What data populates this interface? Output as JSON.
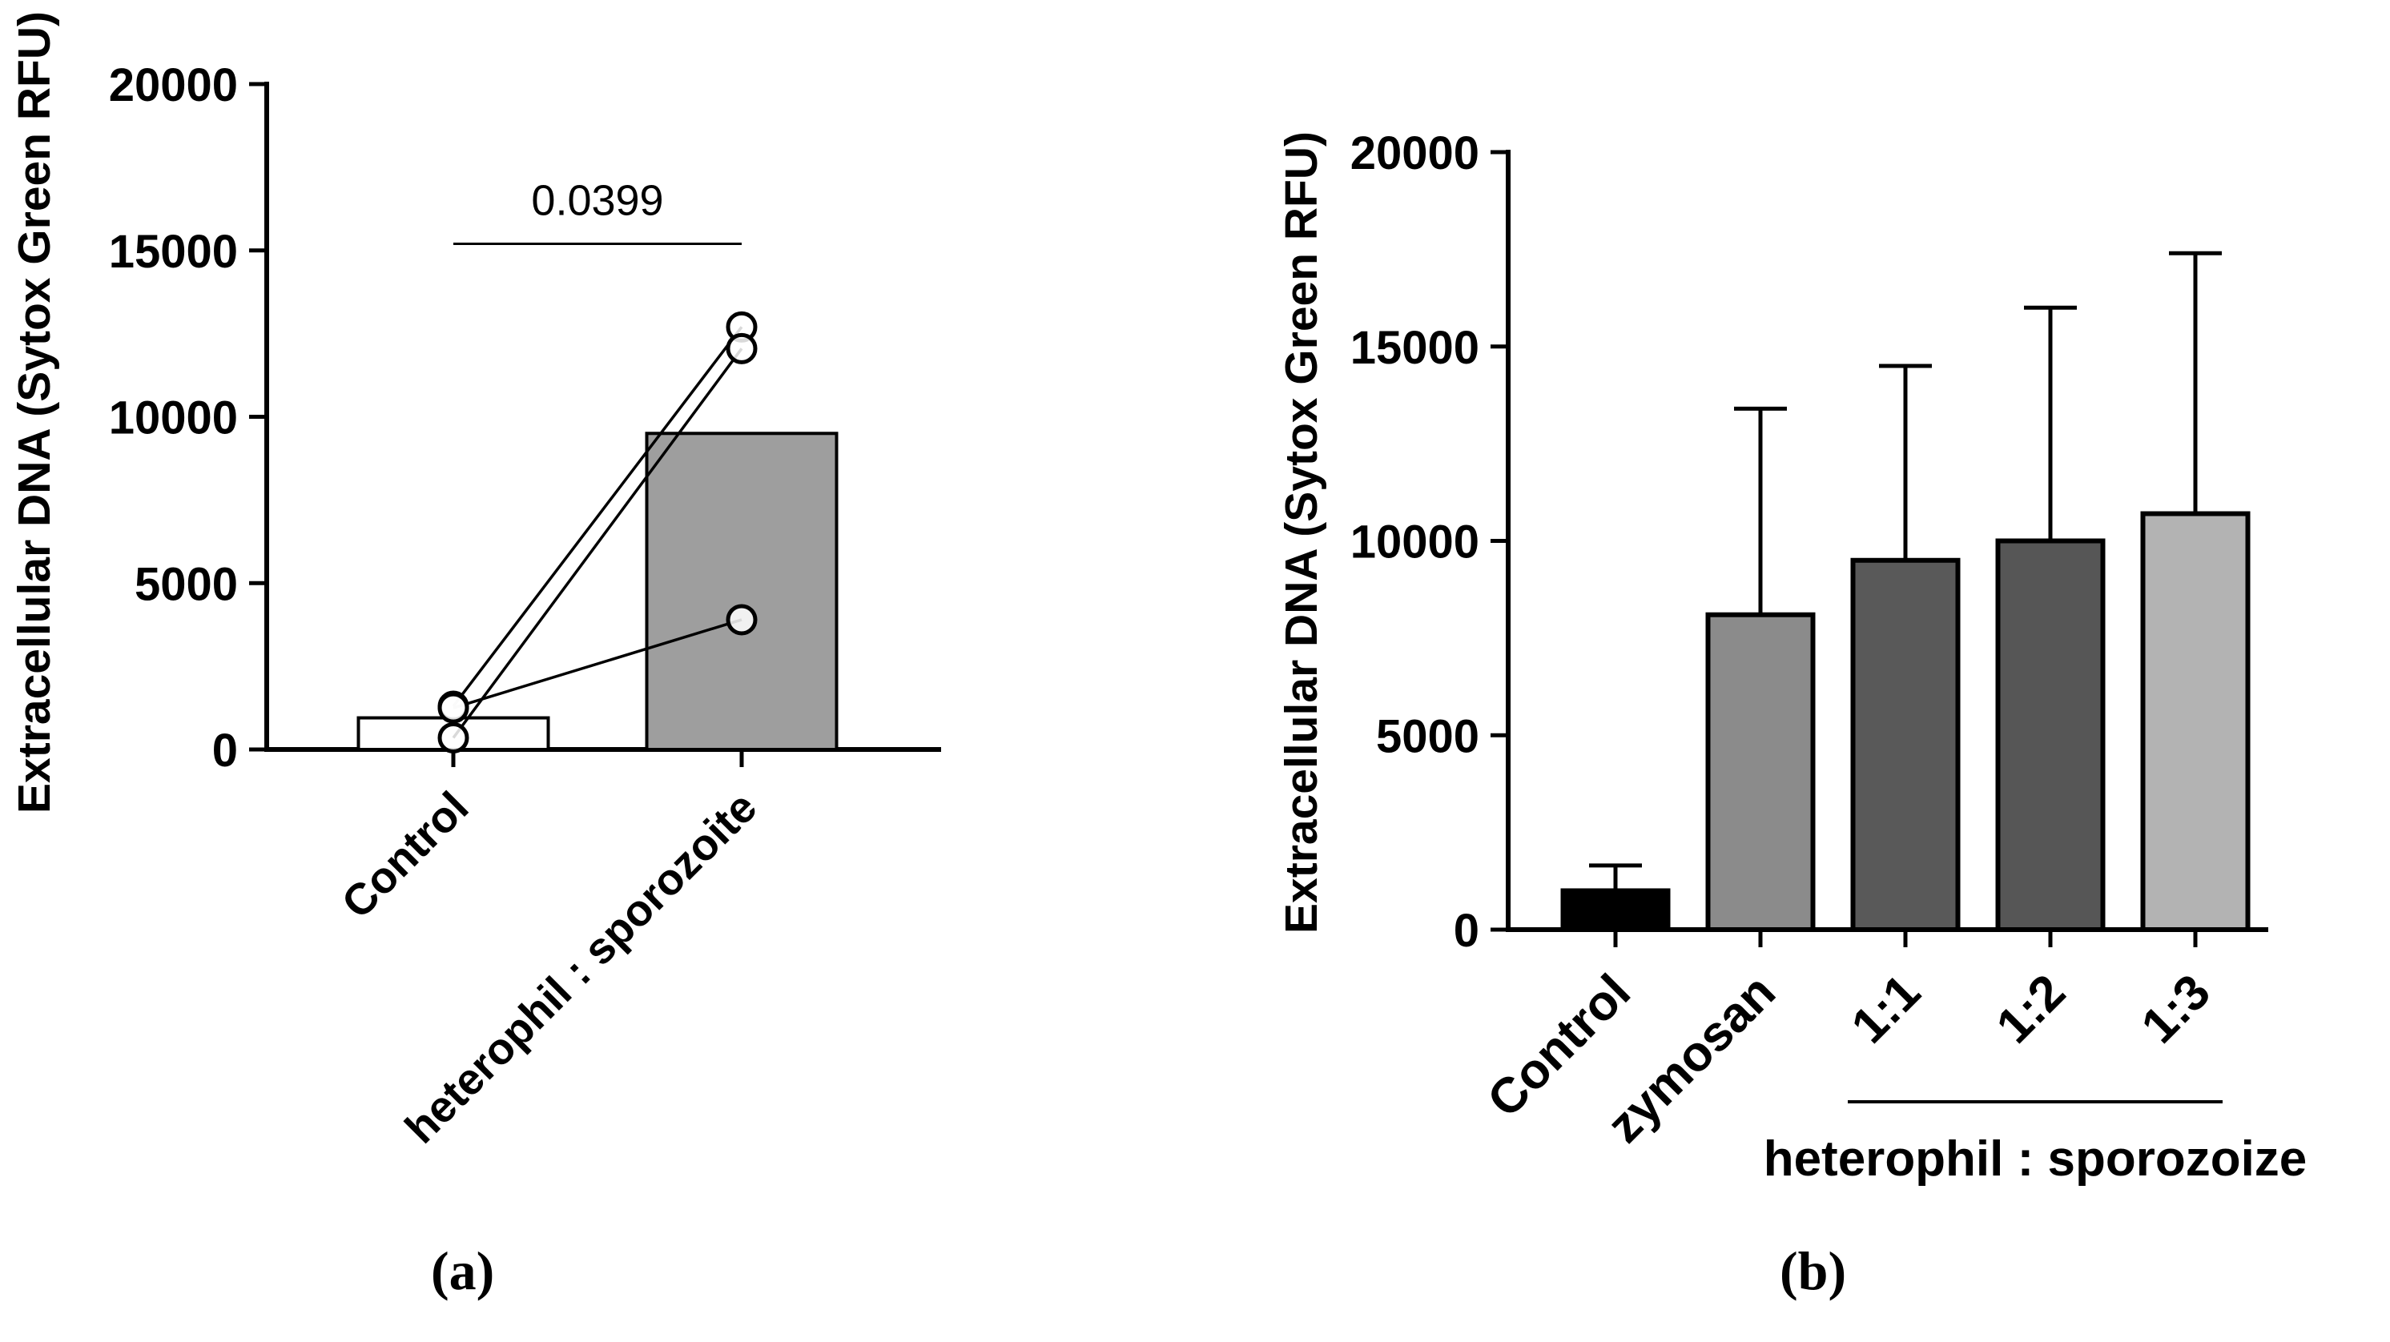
{
  "panels": {
    "a": {
      "label": "(a)"
    },
    "b": {
      "label": "(b)"
    }
  },
  "chart_data": [
    {
      "type": "bar",
      "panel": "a",
      "title": "",
      "ylabel": "Extracellular DNA (Sytox Green RFU)",
      "xlabel": "",
      "ylim": [
        0,
        20000
      ],
      "yticks": [
        0,
        5000,
        10000,
        15000,
        20000
      ],
      "categories": [
        "Control",
        "heterophil : sporozoite"
      ],
      "values": [
        950,
        9500
      ],
      "bar_colors": [
        "#ffffff",
        "#9e9e9e"
      ],
      "grid": false,
      "legend": "none",
      "significance": {
        "label": "0.0399",
        "y": 15200,
        "between": [
          "Control",
          "heterophil : sporozoite"
        ]
      },
      "paired_points": [
        [
          1300,
          12700
        ],
        [
          350,
          12050
        ],
        [
          1250,
          3900
        ]
      ],
      "point_marker": "open-circle"
    },
    {
      "type": "bar",
      "panel": "b",
      "title": "",
      "ylabel": "Extracellular DNA (Sytox Green RFU)",
      "xlabel": "",
      "ylim": [
        0,
        20000
      ],
      "yticks": [
        0,
        5000,
        10000,
        15000,
        20000
      ],
      "categories": [
        "Control",
        "zymosan",
        "1:1",
        "1:2",
        "1:3"
      ],
      "values": [
        1000,
        8100,
        9500,
        10000,
        10700
      ],
      "errors_upper": [
        650,
        5300,
        5000,
        6000,
        6700
      ],
      "bar_colors": [
        "#000000",
        "#8b8b8b",
        "#595959",
        "#565656",
        "#b3b3b3"
      ],
      "grid": false,
      "legend": "none",
      "group_annotation": {
        "label": "heterophil : sporozoize",
        "categories": [
          "1:1",
          "1:2",
          "1:3"
        ]
      }
    }
  ]
}
